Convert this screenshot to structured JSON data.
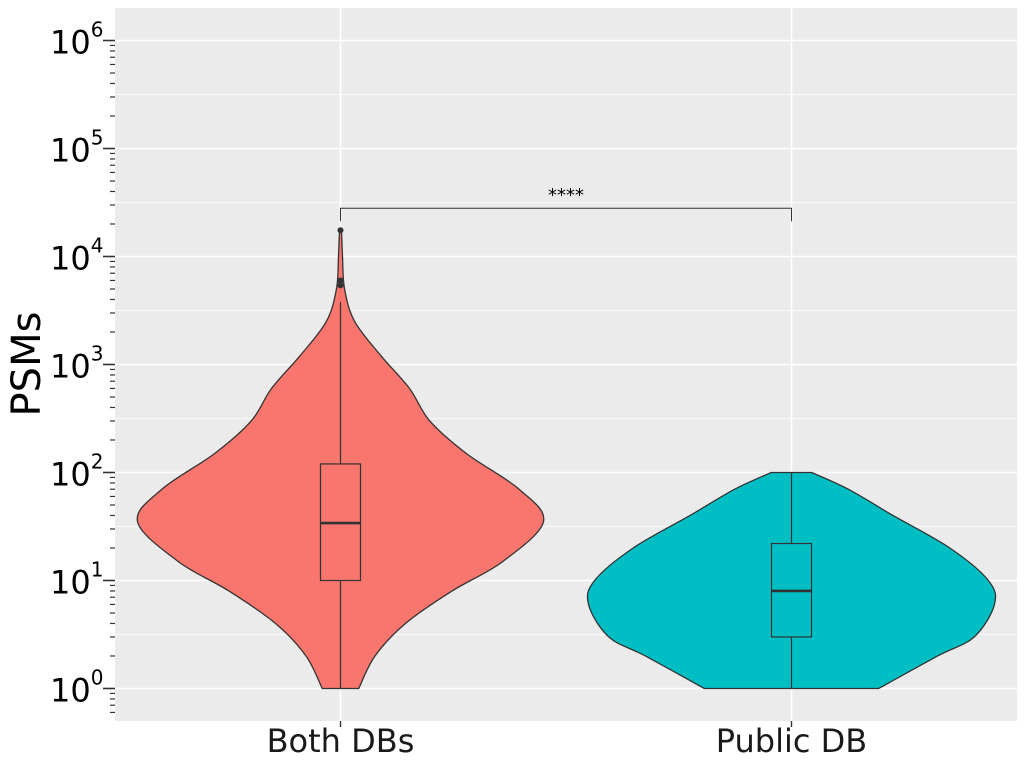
{
  "chart_data": {
    "type": "violin",
    "ylabel": "PSMs",
    "xlabel": "",
    "yscale": "log10",
    "ylim": [
      0.5,
      2000000
    ],
    "y_ticks": [
      {
        "base": "10",
        "exp": "0",
        "value": 1
      },
      {
        "base": "10",
        "exp": "1",
        "value": 10
      },
      {
        "base": "10",
        "exp": "2",
        "value": 100
      },
      {
        "base": "10",
        "exp": "3",
        "value": 1000
      },
      {
        "base": "10",
        "exp": "4",
        "value": 10000
      },
      {
        "base": "10",
        "exp": "5",
        "value": 100000
      },
      {
        "base": "10",
        "exp": "6",
        "value": 1000000
      }
    ],
    "categories": [
      "Both DBs",
      "Public DB"
    ],
    "groups": [
      {
        "name": "Both DBs",
        "color": "#F8766D",
        "min": 1,
        "q1": 10,
        "median": 34,
        "q3": 120,
        "whisker_high": 3800,
        "outliers": [
          17500,
          6000,
          5400
        ],
        "density_profile": [
          [
            1,
            0.09
          ],
          [
            2,
            0.17
          ],
          [
            4,
            0.32
          ],
          [
            8,
            0.55
          ],
          [
            15,
            0.8
          ],
          [
            35,
            1.0
          ],
          [
            70,
            0.88
          ],
          [
            150,
            0.62
          ],
          [
            300,
            0.44
          ],
          [
            600,
            0.34
          ],
          [
            1200,
            0.2
          ],
          [
            2500,
            0.07
          ],
          [
            5000,
            0.02
          ],
          [
            10000,
            0.01
          ],
          [
            17500,
            0.005
          ]
        ]
      },
      {
        "name": "Public DB",
        "color": "#00BFC4",
        "min": 1,
        "q1": 3,
        "median": 8,
        "q3": 22,
        "whisker_high": 100,
        "outliers": [],
        "density_profile": [
          [
            1,
            0.43
          ],
          [
            2,
            0.72
          ],
          [
            3,
            0.9
          ],
          [
            6,
            1.0
          ],
          [
            10,
            0.97
          ],
          [
            20,
            0.78
          ],
          [
            40,
            0.5
          ],
          [
            70,
            0.28
          ],
          [
            100,
            0.1
          ]
        ]
      }
    ],
    "significance": {
      "from": "Both DBs",
      "to": "Public DB",
      "label": "****",
      "y": 28000
    },
    "grid": true,
    "legend": "none",
    "panel_color": "#EBEBEB"
  }
}
